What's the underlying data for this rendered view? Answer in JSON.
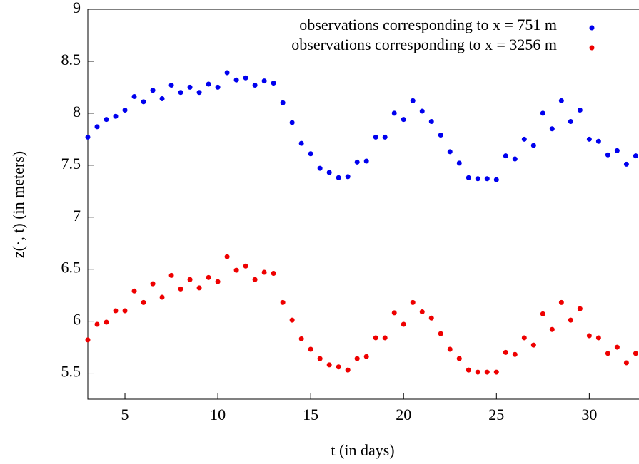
{
  "chart_data": {
    "type": "scatter",
    "xlabel": "t (in days)",
    "ylabel": "z(·, t) (in meters)",
    "x": [
      3,
      3.5,
      4,
      4.5,
      5,
      5.5,
      6,
      6.5,
      7,
      7.5,
      8,
      8.5,
      9,
      9.5,
      10,
      10.5,
      11,
      11.5,
      12,
      12.5,
      13,
      13.5,
      14,
      14.5,
      15,
      15.5,
      16,
      16.5,
      17,
      17.5,
      18,
      18.5,
      19,
      19.5,
      20,
      20.5,
      21,
      21.5,
      22,
      22.5,
      23,
      23.5,
      24,
      24.5,
      25,
      25.5,
      26,
      26.5,
      27,
      27.5,
      28,
      28.5,
      29,
      29.5,
      30,
      30.5,
      31,
      31.5,
      32,
      32.5
    ],
    "series": [
      {
        "name": "observations corresponding to x = 751 m",
        "color": "#0000ee",
        "values": [
          7.77,
          7.87,
          7.94,
          7.97,
          8.03,
          8.16,
          8.11,
          8.22,
          8.14,
          8.27,
          8.2,
          8.25,
          8.2,
          8.28,
          8.25,
          8.39,
          8.32,
          8.34,
          8.27,
          8.31,
          8.29,
          8.1,
          7.91,
          7.71,
          7.61,
          7.47,
          7.43,
          7.38,
          7.39,
          7.53,
          7.54,
          7.77,
          7.77,
          8.0,
          7.94,
          8.12,
          8.02,
          7.92,
          7.79,
          7.63,
          7.52,
          7.38,
          7.37,
          7.37,
          7.36,
          7.59,
          7.56,
          7.75,
          7.69,
          8.0,
          7.85,
          8.12,
          7.92,
          8.03,
          7.75,
          7.73,
          7.6,
          7.64,
          7.51,
          7.59
        ]
      },
      {
        "name": "observations corresponding to x = 3256 m",
        "color": "#ee0000",
        "values": [
          5.82,
          5.97,
          5.99,
          6.1,
          6.1,
          6.29,
          6.18,
          6.36,
          6.23,
          6.44,
          6.31,
          6.4,
          6.32,
          6.42,
          6.38,
          6.62,
          6.49,
          6.53,
          6.4,
          6.47,
          6.46,
          6.18,
          6.01,
          5.83,
          5.73,
          5.64,
          5.58,
          5.56,
          5.53,
          5.64,
          5.66,
          5.84,
          5.84,
          6.08,
          5.97,
          6.18,
          6.09,
          6.03,
          5.88,
          5.73,
          5.64,
          5.53,
          5.51,
          5.51,
          5.51,
          5.7,
          5.68,
          5.84,
          5.77,
          6.07,
          5.92,
          6.18,
          6.01,
          6.12,
          5.86,
          5.84,
          5.69,
          5.75,
          5.6,
          5.69
        ]
      }
    ],
    "xlim": [
      3,
      32.6
    ],
    "ylim": [
      5.25,
      9
    ],
    "xticks": [
      5,
      10,
      15,
      20,
      25,
      30
    ],
    "yticks": [
      5.5,
      6,
      6.5,
      7,
      7.5,
      8,
      8.5,
      9
    ],
    "legend": "top-right"
  }
}
